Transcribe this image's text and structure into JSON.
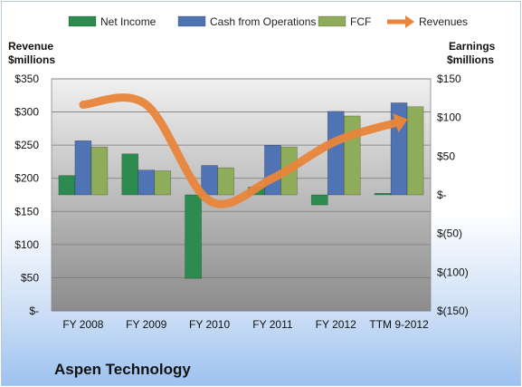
{
  "chart_data": {
    "type": "bar",
    "company": "Aspen Technology",
    "categories": [
      "FY 2008",
      "FY 2009",
      "FY 2010",
      "FY 2011",
      "FY 2012",
      "TTM 9-2012"
    ],
    "series": [
      {
        "name": "Net Income",
        "axis": "right",
        "color": "#2e8b50",
        "values": [
          25,
          53,
          -108,
          10,
          -13,
          2
        ]
      },
      {
        "name": "Cash from Operations",
        "axis": "right",
        "color": "#4f73b3",
        "values": [
          70,
          32,
          38,
          64,
          108,
          119
        ]
      },
      {
        "name": "FCF",
        "axis": "right",
        "color": "#8fac5a",
        "values": [
          62,
          31,
          35,
          62,
          102,
          114
        ]
      },
      {
        "name": "Revenues",
        "axis": "left",
        "type": "line",
        "color": "#e8853a",
        "values": [
          311,
          311,
          166,
          200,
          256,
          285
        ]
      }
    ],
    "left_axis": {
      "label_line1": "Revenue",
      "label_line2": "$millions",
      "ylim": [
        0,
        350
      ],
      "ticks": [
        0,
        50,
        100,
        150,
        200,
        250,
        300,
        350
      ],
      "tick_labels": [
        "$-",
        "$50",
        "$100",
        "$150",
        "$200",
        "$250",
        "$300",
        "$350"
      ]
    },
    "right_axis": {
      "label_line1": "Earnings",
      "label_line2": "$millions",
      "ylim": [
        -150,
        150
      ],
      "ticks": [
        -150,
        -100,
        -50,
        0,
        50,
        100,
        150
      ],
      "tick_labels": [
        "$(150)",
        "$(100)",
        "$(50)",
        "$-",
        "$50",
        "$100",
        "$150"
      ]
    },
    "grid": true,
    "legend_position": "top"
  }
}
